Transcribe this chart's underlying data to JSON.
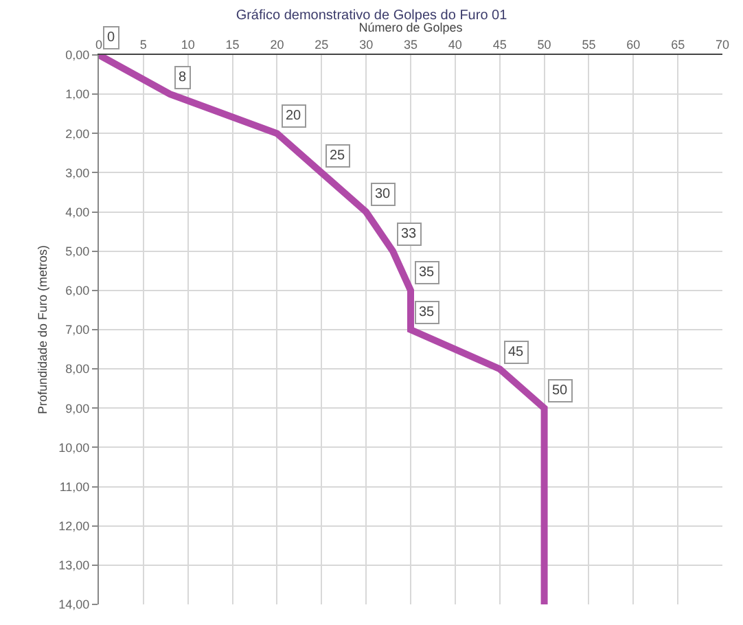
{
  "chart_data": {
    "type": "line",
    "title": "Gráfico demonstrativo de Golpes do Furo 01",
    "xlabel": "Número de Golpes",
    "ylabel": "Profundidade do Furo (metros)",
    "x": [
      0,
      8,
      20,
      25,
      30,
      33,
      35,
      35,
      45,
      50,
      50
    ],
    "series": [
      {
        "color": "#b04aa8",
        "values": [
          0,
          1,
          2,
          3,
          4,
          5,
          6,
          7,
          8,
          9,
          14
        ]
      }
    ],
    "annotations": [
      {
        "text": "0",
        "x": 0,
        "y": 0
      },
      {
        "text": "8",
        "x": 8,
        "y": 1
      },
      {
        "text": "20",
        "x": 20,
        "y": 2
      },
      {
        "text": "25",
        "x": 25,
        "y": 3
      },
      {
        "text": "30",
        "x": 30,
        "y": 4
      },
      {
        "text": "33",
        "x": 33,
        "y": 5
      },
      {
        "text": "35",
        "x": 35,
        "y": 6
      },
      {
        "text": "35",
        "x": 35,
        "y": 7
      },
      {
        "text": "45",
        "x": 45,
        "y": 8
      },
      {
        "text": "50",
        "x": 50,
        "y": 9
      }
    ],
    "xlim": [
      0,
      70
    ],
    "xticks": [
      0,
      5,
      10,
      15,
      20,
      25,
      30,
      35,
      40,
      45,
      50,
      55,
      60,
      65,
      70
    ],
    "ylim": [
      14,
      0
    ],
    "yticks": [
      {
        "value": 0,
        "label": "0,00"
      },
      {
        "value": 1,
        "label": "1,00"
      },
      {
        "value": 2,
        "label": "2,00"
      },
      {
        "value": 3,
        "label": "3,00"
      },
      {
        "value": 4,
        "label": "4,00"
      },
      {
        "value": 5,
        "label": "5,00"
      },
      {
        "value": 6,
        "label": "6,00"
      },
      {
        "value": 7,
        "label": "7,00"
      },
      {
        "value": 8,
        "label": "8,00"
      },
      {
        "value": 9,
        "label": "9,00"
      },
      {
        "value": 10,
        "label": "10,00"
      },
      {
        "value": 11,
        "label": "11,00"
      },
      {
        "value": 12,
        "label": "12,00"
      },
      {
        "value": 13,
        "label": "13,00"
      },
      {
        "value": 14,
        "label": "14,00"
      }
    ],
    "grid": true,
    "marker": "none",
    "line_style": "solid"
  }
}
